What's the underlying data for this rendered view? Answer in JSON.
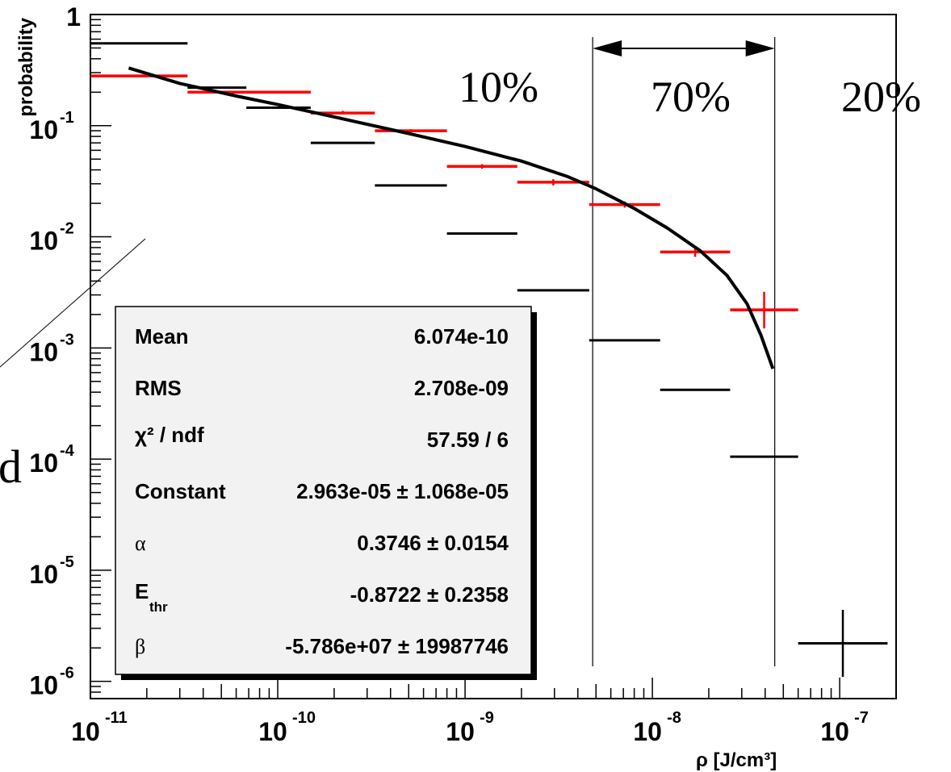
{
  "chart_data": {
    "type": "scatter",
    "x_scale": "log",
    "y_scale": "log",
    "xlim": [
      1e-11,
      2e-07
    ],
    "ylim": [
      7e-07,
      1
    ],
    "ylabel": "probability",
    "xlabel": "ρ [J/cm³]",
    "x_ticks": [
      {
        "value": 1e-11,
        "base": "10",
        "exp": "-11"
      },
      {
        "value": 1e-10,
        "base": "10",
        "exp": "-10"
      },
      {
        "value": 1e-09,
        "base": "10",
        "exp": "-9"
      },
      {
        "value": 1e-08,
        "base": "10",
        "exp": "-8"
      },
      {
        "value": 1e-07,
        "base": "10",
        "exp": "-7"
      }
    ],
    "y_ticks": [
      {
        "value": 1,
        "base": "1",
        "exp": ""
      },
      {
        "value": 0.1,
        "base": "10",
        "exp": "-1"
      },
      {
        "value": 0.01,
        "base": "10",
        "exp": "-2"
      },
      {
        "value": 0.001,
        "base": "10",
        "exp": "-3"
      },
      {
        "value": 0.0001,
        "base": "10",
        "exp": "-4"
      },
      {
        "value": 1e-05,
        "base": "10",
        "exp": "-5"
      },
      {
        "value": 1e-06,
        "base": "10",
        "exp": "-6"
      }
    ],
    "series": [
      {
        "color": "#000000",
        "points": [
          {
            "xlo": 1e-11,
            "xhi": 3.3e-11,
            "y": 0.55,
            "ylo": 0.55,
            "yhi": 0.55
          },
          {
            "xlo": 3.3e-11,
            "xhi": 6.8e-11,
            "y": 0.22,
            "ylo": 0.22,
            "yhi": 0.22
          },
          {
            "xlo": 6.8e-11,
            "xhi": 1.5e-10,
            "y": 0.145,
            "ylo": 0.145,
            "yhi": 0.145
          },
          {
            "xlo": 1.5e-10,
            "xhi": 3.3e-10,
            "y": 0.07,
            "ylo": 0.07,
            "yhi": 0.07
          },
          {
            "xlo": 3.3e-10,
            "xhi": 8e-10,
            "y": 0.029,
            "ylo": 0.029,
            "yhi": 0.029
          },
          {
            "xlo": 8e-10,
            "xhi": 1.9e-09,
            "y": 0.0107,
            "ylo": 0.0107,
            "yhi": 0.0107
          },
          {
            "xlo": 1.9e-09,
            "xhi": 4.6e-09,
            "y": 0.0033,
            "ylo": 0.0033,
            "yhi": 0.0033
          },
          {
            "xlo": 4.6e-09,
            "xhi": 1.1e-08,
            "y": 0.00117,
            "ylo": 0.00117,
            "yhi": 0.00117
          },
          {
            "xlo": 1.1e-08,
            "xhi": 2.6e-08,
            "y": 0.00042,
            "ylo": 0.00042,
            "yhi": 0.00042
          },
          {
            "xlo": 2.6e-08,
            "xhi": 6e-08,
            "y": 0.000105,
            "ylo": 0.000105,
            "yhi": 0.000105
          },
          {
            "xlo": 6e-08,
            "xhi": 1.8e-07,
            "y": 2.2e-06,
            "ylo": 1.1e-06,
            "yhi": 4.4e-06
          }
        ]
      },
      {
        "color": "#ff0000",
        "points": [
          {
            "xlo": 1e-11,
            "xhi": 3.3e-11,
            "y": 0.28,
            "ylo": 0.28,
            "yhi": 0.28
          },
          {
            "xlo": 3.3e-11,
            "xhi": 1.5e-10,
            "y": 0.2,
            "ylo": 0.2,
            "yhi": 0.2
          },
          {
            "xlo": 1.5e-10,
            "xhi": 3.3e-10,
            "y": 0.13,
            "ylo": 0.127,
            "yhi": 0.136
          },
          {
            "xlo": 3.3e-10,
            "xhi": 8e-10,
            "y": 0.09,
            "ylo": 0.087,
            "yhi": 0.093
          },
          {
            "xlo": 8e-10,
            "xhi": 1.9e-09,
            "y": 0.043,
            "ylo": 0.041,
            "yhi": 0.045
          },
          {
            "xlo": 1.9e-09,
            "xhi": 4.6e-09,
            "y": 0.031,
            "ylo": 0.029,
            "yhi": 0.033
          },
          {
            "xlo": 4.6e-09,
            "xhi": 1.1e-08,
            "y": 0.0195,
            "ylo": 0.0183,
            "yhi": 0.0208
          },
          {
            "xlo": 1.1e-08,
            "xhi": 2.6e-08,
            "y": 0.0073,
            "ylo": 0.0066,
            "yhi": 0.0082
          },
          {
            "xlo": 2.6e-08,
            "xhi": 6e-08,
            "y": 0.0022,
            "ylo": 0.0015,
            "yhi": 0.0032
          }
        ]
      }
    ],
    "fit": {
      "color": "#000000",
      "points": [
        [
          1.6e-11,
          0.33
        ],
        [
          3e-11,
          0.24
        ],
        [
          6e-11,
          0.185
        ],
        [
          1e-10,
          0.155
        ],
        [
          2e-10,
          0.12
        ],
        [
          5e-10,
          0.085
        ],
        [
          1e-09,
          0.065
        ],
        [
          2e-09,
          0.048
        ],
        [
          3.5e-09,
          0.035
        ],
        [
          5e-09,
          0.027
        ],
        [
          8e-09,
          0.018
        ],
        [
          1.2e-08,
          0.012
        ],
        [
          1.8e-08,
          0.0075
        ],
        [
          2.5e-08,
          0.0045
        ],
        [
          3.2e-08,
          0.0025
        ],
        [
          3.8e-08,
          0.0013
        ],
        [
          4.4e-08,
          0.00065
        ]
      ]
    },
    "regions": {
      "line_x": [
        4.8e-09,
        4.5e-08
      ],
      "arrow_y": 0.75,
      "labels": [
        {
          "text": "10%",
          "x": 1.2e-09,
          "y": 0.2
        },
        {
          "text": "70%",
          "x": 1.4e-08,
          "y": 0.17
        },
        {
          "text": "20%",
          "x": 1.1e-07,
          "y": 0.17
        }
      ]
    },
    "stats_box": [
      {
        "name": "Mean",
        "value": "6.074e-10",
        "style": "text"
      },
      {
        "name": "RMS",
        "value": "2.708e-09",
        "style": "text"
      },
      {
        "name": "χ² / ndf",
        "value": "57.59 / 6",
        "style": "chi"
      },
      {
        "name": "Constant",
        "value": "2.963e-05 ± 1.068e-05",
        "style": "text"
      },
      {
        "name": "α",
        "value": "0.3746 ± 0.0154",
        "style": "symbol"
      },
      {
        "name": "E",
        "sub": "thr",
        "value": "-0.8722 ± 0.2358",
        "style": "sub"
      },
      {
        "name": "β",
        "value": "-5.786e+07 ± 19987746",
        "style": "symbol"
      }
    ],
    "edge_fragment": {
      "text": "d"
    }
  }
}
